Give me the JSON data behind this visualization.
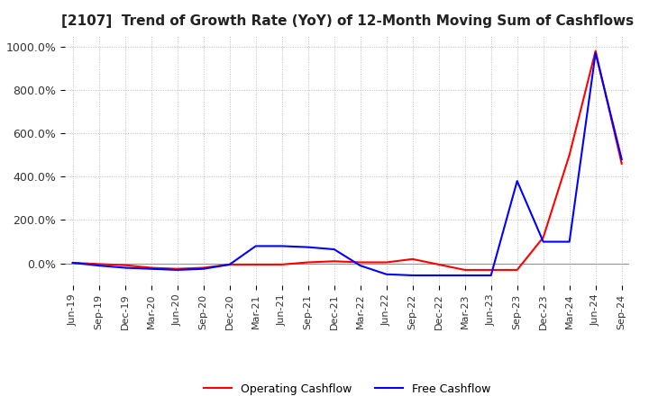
{
  "title": "[2107]  Trend of Growth Rate (YoY) of 12-Month Moving Sum of Cashflows",
  "ylim": [
    -100,
    1050
  ],
  "yticks": [
    0,
    200,
    400,
    600,
    800,
    1000
  ],
  "ytick_labels": [
    "0.0%",
    "200.0%",
    "400.0%",
    "600.0%",
    "800.0%",
    "1000.0%"
  ],
  "legend_labels": [
    "Operating Cashflow",
    "Free Cashflow"
  ],
  "line_colors": [
    "#ff0000",
    "#0000ff"
  ],
  "background_color": "#ffffff",
  "grid_color": "#aaaaaa",
  "x_labels": [
    "Jun-19",
    "Sep-19",
    "Dec-19",
    "Mar-20",
    "Jun-20",
    "Sep-20",
    "Dec-20",
    "Mar-21",
    "Jun-21",
    "Sep-21",
    "Dec-21",
    "Mar-22",
    "Jun-22",
    "Sep-22",
    "Dec-22",
    "Mar-23",
    "Jun-23",
    "Sep-23",
    "Dec-23",
    "Mar-24",
    "Jun-24",
    "Sep-24"
  ],
  "operating_cashflow": [
    3,
    -3,
    -8,
    -20,
    -25,
    -20,
    -5,
    -5,
    -5,
    5,
    10,
    5,
    5,
    20,
    -5,
    -30,
    -30,
    -30,
    120,
    500,
    980,
    460
  ],
  "free_cashflow": [
    3,
    -10,
    -20,
    -25,
    -30,
    -25,
    -5,
    80,
    80,
    75,
    65,
    -10,
    -50,
    -55,
    -55,
    -55,
    -55,
    380,
    100,
    100,
    970,
    480
  ]
}
